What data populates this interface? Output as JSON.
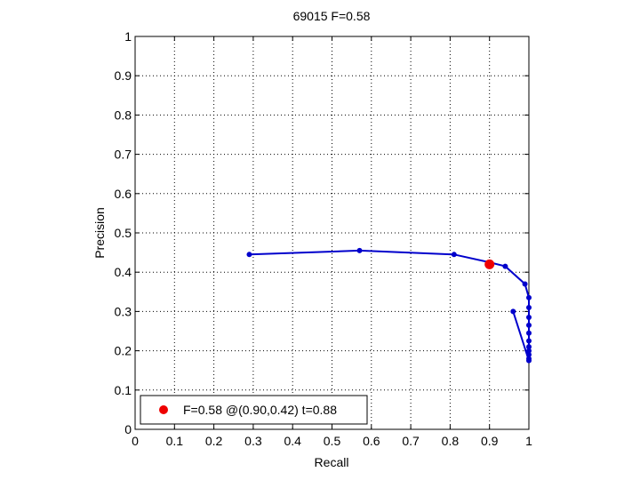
{
  "chart_data": {
    "type": "line",
    "title": "69015 F=0.58",
    "xlabel": "Recall",
    "ylabel": "Precision",
    "xlim": [
      0,
      1
    ],
    "ylim": [
      0,
      1
    ],
    "xticks": [
      0,
      0.1,
      0.2,
      0.3,
      0.4,
      0.5,
      0.6,
      0.7,
      0.8,
      0.9,
      1
    ],
    "yticks": [
      0,
      0.1,
      0.2,
      0.3,
      0.4,
      0.5,
      0.6,
      0.7,
      0.8,
      0.9,
      1
    ],
    "xtick_labels": [
      "0",
      "0.1",
      "0.2",
      "0.3",
      "0.4",
      "0.5",
      "0.6",
      "0.7",
      "0.8",
      "0.9",
      "1"
    ],
    "ytick_labels": [
      "0",
      "0.1",
      "0.2",
      "0.3",
      "0.4",
      "0.5",
      "0.6",
      "0.7",
      "0.8",
      "0.9",
      "1"
    ],
    "grid": true,
    "legend_position": "bottom-left",
    "series": [
      {
        "color": "#0000cc",
        "x": [
          0.29,
          0.57,
          0.81,
          0.9,
          0.94,
          0.99,
          1.0,
          1.0,
          1.0,
          1.0,
          1.0,
          1.0,
          1.0,
          1.0,
          1.0,
          1.0,
          1.0,
          0.96
        ],
        "y": [
          0.445,
          0.455,
          0.445,
          0.425,
          0.415,
          0.37,
          0.335,
          0.31,
          0.285,
          0.265,
          0.245,
          0.225,
          0.21,
          0.2,
          0.19,
          0.18,
          0.175,
          0.3
        ]
      }
    ],
    "highlight": {
      "name": "F=0.58 @(0.90,0.42) t=0.88",
      "color": "#ee0000",
      "x": 0.9,
      "y": 0.42
    }
  }
}
